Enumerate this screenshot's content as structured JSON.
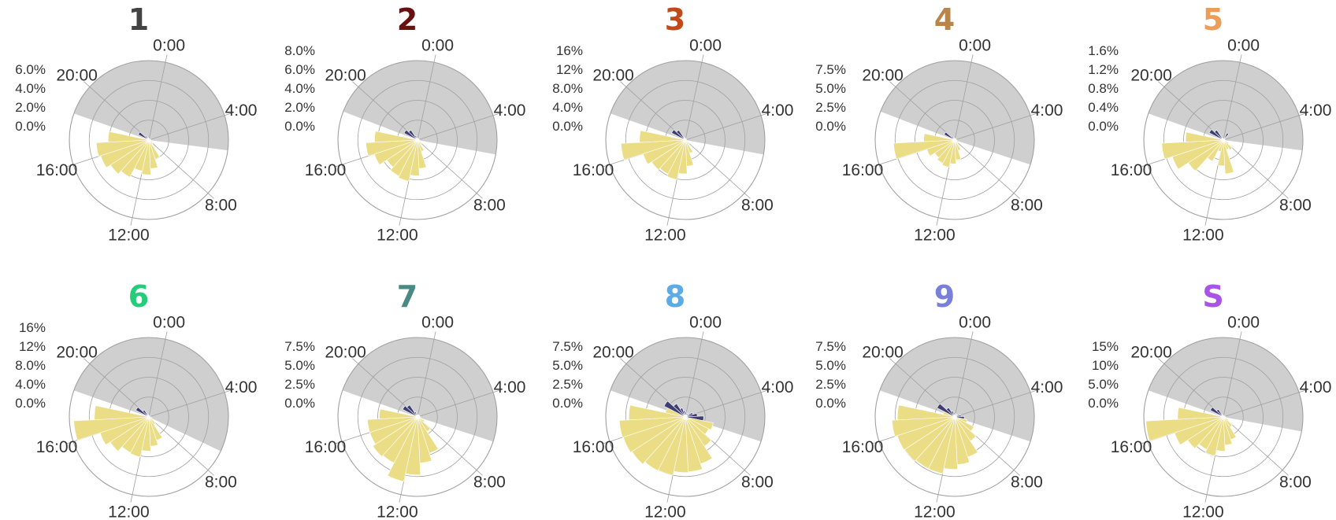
{
  "figure": {
    "background": "#ffffff"
  },
  "colors": {
    "night_band": "#cfcfcf",
    "day_bar": "#ebdd85",
    "night_bar": "#3e3e73",
    "grid": "#a0a0a0",
    "text": "#333333"
  },
  "time_labels": [
    "0:00",
    "4:00",
    "8:00",
    "12:00",
    "16:00",
    "20:00"
  ],
  "chart_data": [
    {
      "type": "polar-bar",
      "title": "1",
      "title_color": "#444444",
      "radial_ticks": [
        "6.0%",
        "4.0%",
        "2.0%",
        "0.0%"
      ],
      "rmax": 8,
      "night_hours": [
        18.5,
        5.7
      ],
      "values": [
        0.15,
        0.1,
        0.1,
        0.1,
        0.2,
        0.2,
        0.3,
        0.4,
        0.5,
        2.0,
        2.9,
        3.5,
        3.2,
        4.2,
        4.6,
        5.1,
        5.3,
        4.1,
        0.3,
        1.2,
        0.5,
        0.3,
        0.2,
        0.15
      ]
    },
    {
      "type": "polar-bar",
      "title": "2",
      "title_color": "#6b1010",
      "radial_ticks": [
        "8.0%",
        "6.0%",
        "4.0%",
        "2.0%",
        "0.0%"
      ],
      "rmax": 10,
      "night_hours": [
        18.6,
        5.9
      ],
      "values": [
        0.2,
        0.2,
        0.2,
        0.2,
        0.2,
        0.3,
        0.3,
        0.5,
        0.7,
        1.5,
        3.6,
        4.5,
        5.3,
        5.1,
        4.6,
        5.7,
        6.5,
        5.4,
        0.4,
        1.9,
        1.5,
        0.6,
        0.3,
        0.2
      ]
    },
    {
      "type": "polar-bar",
      "title": "3",
      "title_color": "#c24a1a",
      "radial_ticks": [
        "16%",
        "12%",
        "8.0%",
        "4.0%",
        "0.0%"
      ],
      "rmax": 20,
      "night_hours": [
        18.5,
        5.9
      ],
      "values": [
        0.3,
        0.3,
        0.3,
        0.3,
        0.3,
        0.4,
        0.7,
        1.0,
        1.4,
        3.5,
        6.6,
        8.5,
        10.2,
        9.6,
        10.1,
        11.2,
        16.2,
        11.5,
        1.1,
        3.9,
        3.0,
        0.8,
        0.6,
        0.4
      ]
    },
    {
      "type": "polar-bar",
      "title": "4",
      "title_color": "#b8864a",
      "radial_ticks": [
        "7.5%",
        "5.0%",
        "2.5%",
        "0.0%"
      ],
      "rmax": 10,
      "night_hours": [
        18.6,
        6.4
      ],
      "values": [
        0.2,
        0.2,
        0.2,
        0.2,
        0.2,
        0.3,
        0.3,
        0.6,
        0.5,
        1.4,
        2.5,
        3.0,
        3.5,
        3.3,
        3.0,
        3.7,
        7.7,
        3.9,
        0.3,
        1.5,
        0.6,
        0.4,
        0.2,
        0.2
      ]
    },
    {
      "type": "polar-bar",
      "title": "5",
      "title_color": "#ec9d58",
      "radial_ticks": [
        "1.6%",
        "1.2%",
        "0.8%",
        "0.4%",
        "0.0%"
      ],
      "rmax": 2.0,
      "night_hours": [
        18.5,
        5.7
      ],
      "values": [
        0.03,
        0.2,
        0.04,
        0.04,
        0.04,
        0.05,
        0.08,
        0.15,
        0.3,
        0.25,
        0.85,
        0.65,
        0.3,
        0.6,
        1.05,
        1.35,
        1.55,
        0.95,
        0.08,
        0.4,
        0.3,
        0.06,
        0.04,
        0.03
      ]
    },
    {
      "type": "polar-bar",
      "title": "6",
      "title_color": "#25cc7a",
      "radial_ticks": [
        "16%",
        "12%",
        "8.0%",
        "4.0%",
        "0.0%"
      ],
      "rmax": 20,
      "night_hours": [
        18.5,
        6.9
      ],
      "values": [
        0.3,
        0.3,
        0.3,
        0.3,
        0.3,
        0.4,
        0.8,
        1.1,
        2.2,
        6.2,
        7.4,
        8.6,
        10.3,
        10.1,
        11.6,
        12.9,
        18.9,
        13.7,
        0.8,
        3.7,
        2.1,
        0.7,
        0.5,
        0.3
      ]
    },
    {
      "type": "polar-bar",
      "title": "7",
      "title_color": "#4a8a84",
      "radial_ticks": [
        "7.5%",
        "5.0%",
        "2.5%",
        "0.0%"
      ],
      "rmax": 10,
      "night_hours": [
        18.5,
        6.4
      ],
      "values": [
        0.3,
        0.3,
        0.3,
        0.3,
        0.3,
        0.4,
        0.5,
        1.0,
        2.2,
        4.8,
        5.8,
        7.3,
        8.3,
        6.5,
        6.7,
        6.3,
        6.3,
        4.8,
        0.6,
        2.1,
        1.8,
        0.7,
        0.5,
        0.3
      ]
    },
    {
      "type": "polar-bar",
      "title": "8",
      "title_color": "#5caae6",
      "radial_ticks": [
        "7.5%",
        "5.0%",
        "2.5%",
        "0.0%"
      ],
      "rmax": 10,
      "night_hours": [
        18.5,
        6.4
      ],
      "values": [
        0.5,
        0.5,
        0.5,
        1.0,
        1.5,
        2.3,
        3.6,
        3.3,
        4.4,
        6.2,
        6.9,
        7.0,
        7.5,
        7.6,
        8.0,
        8.2,
        8.3,
        7.1,
        2.5,
        3.0,
        2.0,
        1.2,
        0.8,
        0.6
      ]
    },
    {
      "type": "polar-bar",
      "title": "9",
      "title_color": "#7a7fd8",
      "radial_ticks": [
        "7.5%",
        "5.0%",
        "2.5%",
        "0.0%"
      ],
      "rmax": 10,
      "night_hours": [
        18.5,
        6.4
      ],
      "values": [
        0.4,
        0.4,
        0.4,
        0.6,
        0.8,
        1.2,
        1.6,
        2.7,
        3.6,
        5.3,
        6.0,
        6.6,
        7.3,
        7.3,
        7.5,
        7.6,
        7.9,
        7.2,
        1.5,
        2.5,
        1.4,
        0.8,
        0.6,
        0.4
      ]
    },
    {
      "type": "polar-bar",
      "title": "S",
      "title_color": "#a855e6",
      "radial_ticks": [
        "15%",
        "10%",
        "5.0%",
        "0.0%"
      ],
      "rmax": 20,
      "night_hours": [
        18.5,
        5.9
      ],
      "values": [
        0.3,
        0.3,
        0.3,
        0.4,
        0.5,
        0.6,
        0.8,
        1.4,
        3.0,
        6.0,
        7.1,
        8.6,
        10.0,
        9.2,
        10.7,
        12.9,
        19.5,
        11.5,
        0.8,
        3.7,
        2.3,
        0.8,
        0.5,
        0.3
      ]
    }
  ]
}
